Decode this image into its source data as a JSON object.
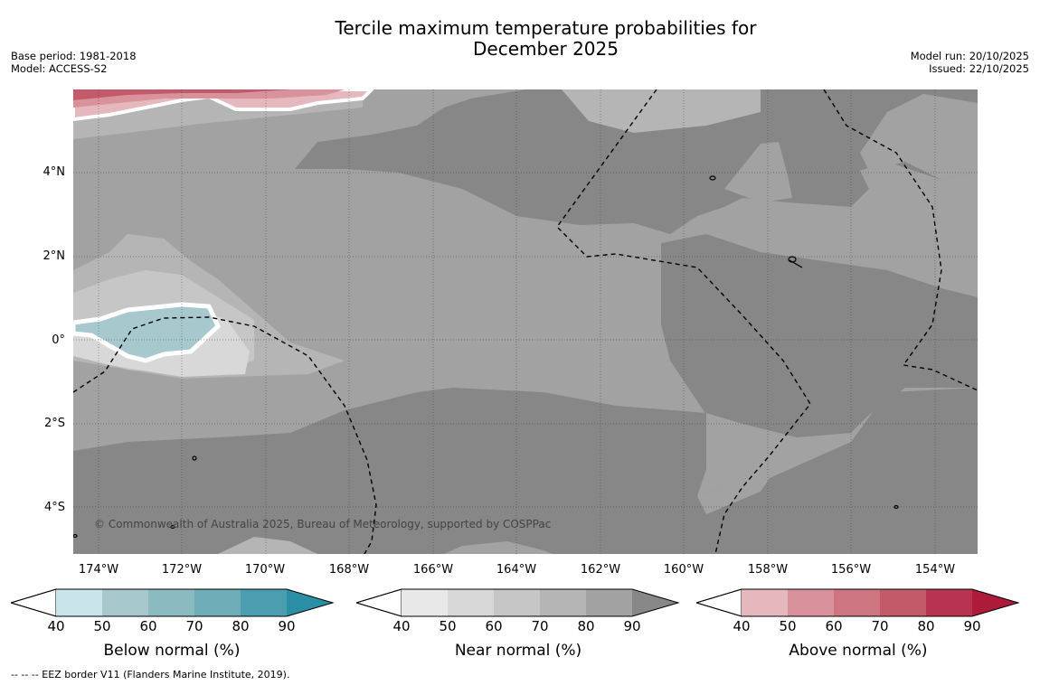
{
  "title_line1": "Tercile maximum temperature probabilities for",
  "title_line2": "December 2025",
  "meta_left": [
    "Base period: 1981-2018",
    "Model: ACCESS-S2"
  ],
  "meta_right": [
    "Model run: 20/10/2025",
    "Issued: 22/10/2025"
  ],
  "y_ticks": [
    "4°N",
    "2°N",
    "0°",
    "2°S",
    "4°S"
  ],
  "x_ticks": [
    "174°W",
    "172°W",
    "170°W",
    "168°W",
    "166°W",
    "164°W",
    "162°W",
    "160°W",
    "158°W",
    "156°W",
    "154°W"
  ],
  "credit": "© Commonwealth of Australia 2025, Bureau of Meteorology, supported by COSPPac",
  "colorbars": [
    {
      "label": "Below normal (%)",
      "ticks": [
        "40",
        "50",
        "60",
        "70",
        "80",
        "90"
      ],
      "colors": [
        "#c9e3ea",
        "#a7c8cd",
        "#8bbac1",
        "#6eacb8",
        "#4a9eaf",
        "#2a8fa4"
      ]
    },
    {
      "label": "Near normal (%)",
      "ticks": [
        "40",
        "50",
        "60",
        "70",
        "80",
        "90"
      ],
      "colors": [
        "#e8e8e8",
        "#d8d8d8",
        "#c6c6c6",
        "#b5b5b5",
        "#a2a2a2",
        "#878787"
      ]
    },
    {
      "label": "Above normal (%)",
      "ticks": [
        "40",
        "50",
        "60",
        "70",
        "80",
        "90"
      ],
      "colors": [
        "#e4b8bd",
        "#d9929b",
        "#cd7580",
        "#c25a69",
        "#b83350",
        "#ae1b3a"
      ]
    }
  ],
  "footnote": "--  --  -- EEZ border V11 (Flanders Marine Institute, 2019)."
}
